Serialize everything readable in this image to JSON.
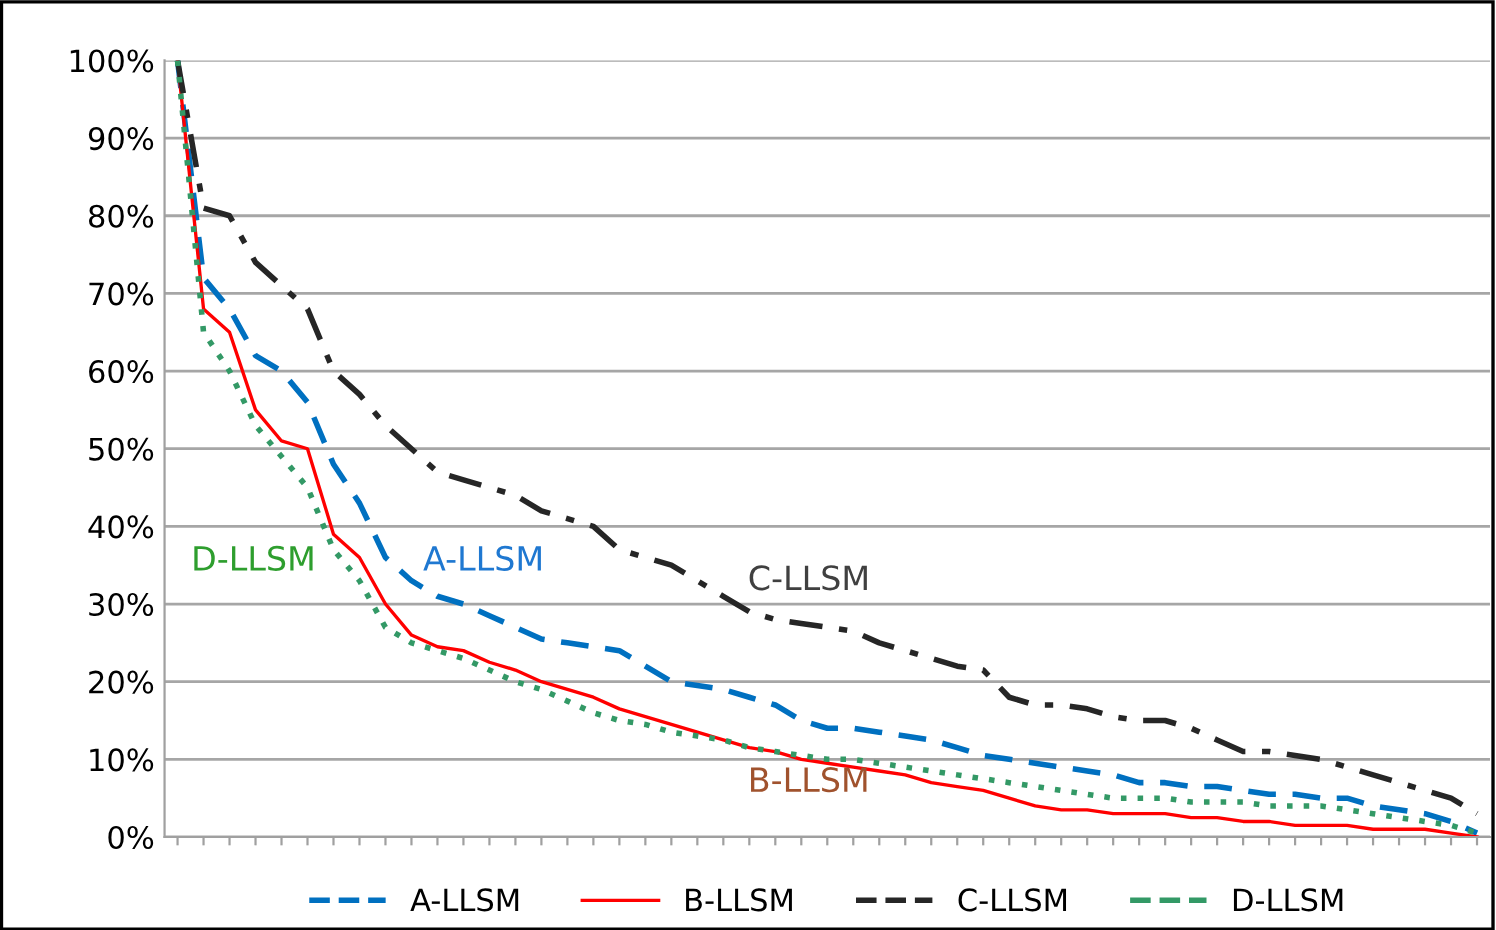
{
  "chart_data": {
    "type": "line",
    "categories": [
      null,
      null,
      null,
      null,
      null,
      null,
      null,
      null,
      null,
      null,
      null,
      null,
      null,
      null,
      null,
      null,
      null,
      null,
      null,
      null,
      null,
      null,
      null,
      null,
      null,
      null,
      null,
      null,
      null,
      null,
      null,
      null,
      null,
      null,
      null,
      null,
      null,
      null,
      null,
      null,
      null,
      null,
      null,
      null,
      null,
      null,
      null,
      null,
      null,
      null,
      null
    ],
    "series": [
      {
        "name": "A-LLSM",
        "color": "#0070c0",
        "line_style": "dashed",
        "values": [
          100,
          72,
          68,
          62,
          60,
          56,
          48,
          43,
          36,
          33,
          31,
          30,
          28.5,
          27,
          25.5,
          25,
          24.5,
          24,
          22,
          20,
          19.5,
          19,
          18,
          17,
          15,
          14,
          14,
          13.5,
          13,
          12.5,
          11.5,
          10.5,
          10,
          9.5,
          9,
          8.5,
          8,
          7,
          7,
          6.5,
          6.5,
          6,
          5.5,
          5.5,
          5,
          5,
          4,
          3.5,
          3,
          2,
          0.5
        ]
      },
      {
        "name": "B-LLSM",
        "color": "#ff0000",
        "line_style": "solid",
        "values": [
          100,
          68,
          65,
          55,
          51,
          50,
          39,
          36,
          30,
          26,
          24.5,
          24,
          22.5,
          21.5,
          20,
          19,
          18,
          16.5,
          15.5,
          14.5,
          13.5,
          12.5,
          11.5,
          11,
          10,
          9.5,
          9,
          8.5,
          8,
          7,
          6.5,
          6,
          5,
          4,
          3.5,
          3.5,
          3,
          3,
          3,
          2.5,
          2.5,
          2,
          2,
          1.5,
          1.5,
          1.5,
          1,
          1,
          1,
          0.5,
          0
        ]
      },
      {
        "name": "C-LLSM",
        "color": "#262626",
        "line_style": "dashdot",
        "values": [
          100,
          81,
          80,
          74,
          71,
          68,
          60,
          57,
          53,
          50,
          47,
          46,
          45,
          44,
          42,
          41,
          40,
          37,
          36,
          35,
          33,
          31,
          29,
          28,
          27.5,
          27,
          26.5,
          25,
          24,
          23,
          22,
          21.5,
          18,
          17,
          17,
          16.5,
          15.5,
          15,
          15,
          14,
          12.5,
          11,
          11,
          10.5,
          10,
          9,
          8,
          7,
          6,
          5,
          3
        ]
      },
      {
        "name": "D-LLSM",
        "color": "#339966",
        "line_style": "dotted",
        "values": [
          100,
          65,
          60,
          53,
          49,
          45,
          37,
          33,
          27,
          25,
          24,
          23,
          21.5,
          20,
          19,
          17.5,
          16,
          15,
          14.5,
          13.5,
          13,
          12.5,
          11.5,
          11,
          10.5,
          10,
          10,
          9.5,
          9,
          8.5,
          8,
          7.5,
          7,
          6.5,
          6,
          5.5,
          5,
          5,
          5,
          4.5,
          4.5,
          4.5,
          4,
          4,
          4,
          3.5,
          3,
          2.5,
          2,
          1.5,
          0.5
        ]
      }
    ],
    "annotations": [
      "D-LLSM",
      "A-LLSM",
      "C-LLSM",
      "B-LLSM"
    ],
    "ylim": [
      0,
      100
    ],
    "yticks": [
      {
        "value": 0,
        "label": "0%"
      },
      {
        "value": 10,
        "label": "10%"
      },
      {
        "value": 20,
        "label": "20%"
      },
      {
        "value": 30,
        "label": "30%"
      },
      {
        "value": 40,
        "label": "40%"
      },
      {
        "value": 50,
        "label": "50%"
      },
      {
        "value": 60,
        "label": "60%"
      },
      {
        "value": 70,
        "label": "70%"
      },
      {
        "value": 80,
        "label": "80%"
      },
      {
        "value": 90,
        "label": "90%"
      },
      {
        "value": 100,
        "label": "100%"
      }
    ],
    "grid": "y",
    "legend": "bottom"
  }
}
